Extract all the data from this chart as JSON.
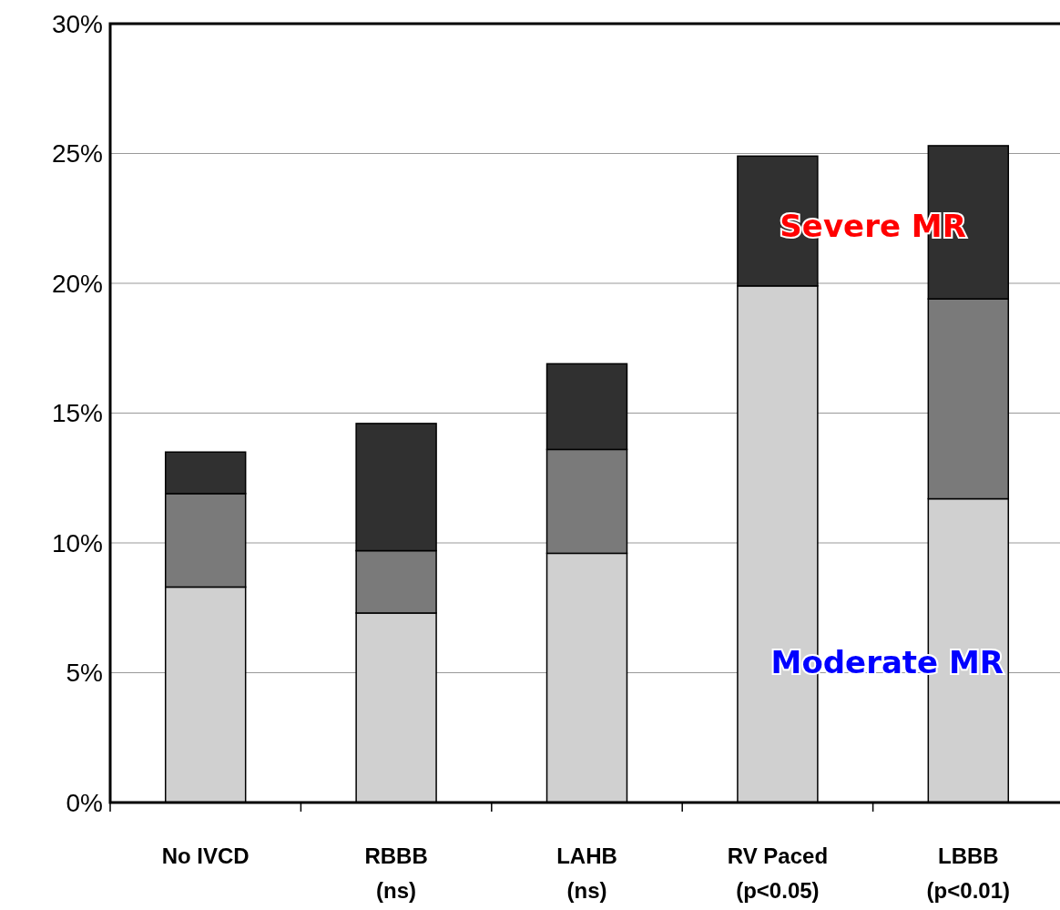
{
  "chart_data": {
    "type": "bar",
    "stacked": true,
    "categories": [
      "No IVCD",
      "RBBB\n(ns)",
      "LAHB\n(ns)",
      "RV Paced\n(p<0.05)",
      "LBBB\n(p<0.01)"
    ],
    "series": [
      {
        "color": "#d0d0d0",
        "values": [
          8.3,
          7.3,
          9.6,
          19.9,
          11.7
        ]
      },
      {
        "color": "#7a7a7a",
        "values": [
          3.6,
          2.4,
          4.0,
          0,
          7.7
        ]
      },
      {
        "color": "#303030",
        "values": [
          1.6,
          4.9,
          3.3,
          5.0,
          5.9
        ]
      }
    ],
    "ylim": [
      0,
      30
    ],
    "yticks": [
      {
        "value": 0,
        "label": "0%"
      },
      {
        "value": 5,
        "label": "5%"
      },
      {
        "value": 10,
        "label": "10%"
      },
      {
        "value": 15,
        "label": "15%"
      },
      {
        "value": 20,
        "label": "20%"
      },
      {
        "value": 25,
        "label": "25%"
      },
      {
        "value": 30,
        "label": "30%"
      }
    ],
    "grid": "y",
    "annotations": [
      "Severe MR",
      "Moderate MR"
    ]
  }
}
